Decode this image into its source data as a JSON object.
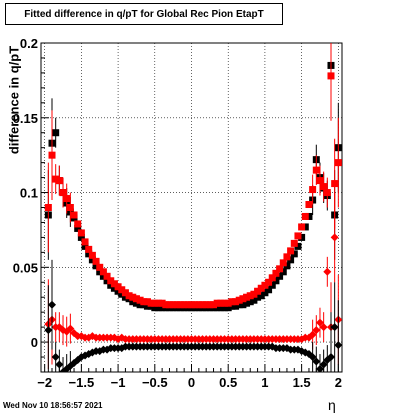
{
  "title": "Fitted difference in q/pT for Global Rec Pion EtapT",
  "timestamp": "Wed Nov 10 18:56:57 2021",
  "chart_data": {
    "type": "scatter",
    "title": "Fitted difference in q/pT for Global Rec Pion EtapT",
    "xlabel": "η",
    "ylabel": "difference in q/pT",
    "xlim": [
      -2.05,
      2.05
    ],
    "ylim": [
      -0.02,
      0.2
    ],
    "grid": true,
    "xticks": [
      -2,
      -1.5,
      -1,
      -0.5,
      0,
      0.5,
      1,
      1.5,
      2
    ],
    "xtick_labels": [
      "−2",
      "−1.5",
      "−1",
      "−0.5",
      "0",
      "0.5",
      "1",
      "1.5",
      "2"
    ],
    "yticks": [
      0,
      0.05,
      0.1,
      0.15,
      0.2
    ],
    "ytick_labels": [
      "0",
      "0.05",
      "0.1",
      "0.15",
      "0.2"
    ],
    "series": [
      {
        "color": "#000000",
        "marker": "square",
        "x": [
          -1.95,
          -1.9,
          -1.85,
          -1.8,
          -1.75,
          -1.7,
          -1.65,
          -1.6,
          -1.55,
          -1.5,
          -1.45,
          -1.4,
          -1.35,
          -1.3,
          -1.25,
          -1.2,
          -1.15,
          -1.1,
          -1.05,
          -1.0,
          -0.95,
          -0.9,
          -0.85,
          -0.8,
          -0.75,
          -0.7,
          -0.65,
          -0.6,
          -0.55,
          -0.5,
          -0.45,
          -0.4,
          -0.35,
          -0.3,
          -0.25,
          -0.2,
          -0.15,
          -0.1,
          -0.05,
          0.0,
          0.05,
          0.1,
          0.15,
          0.2,
          0.25,
          0.3,
          0.35,
          0.4,
          0.45,
          0.5,
          0.55,
          0.6,
          0.65,
          0.7,
          0.75,
          0.8,
          0.85,
          0.9,
          0.95,
          1.0,
          1.05,
          1.1,
          1.15,
          1.2,
          1.25,
          1.3,
          1.35,
          1.4,
          1.45,
          1.5,
          1.55,
          1.6,
          1.65,
          1.7,
          1.75,
          1.8,
          1.85,
          1.9,
          1.95,
          2.0
        ],
        "y": [
          0.085,
          0.133,
          0.14,
          0.108,
          0.1,
          0.093,
          0.087,
          0.083,
          0.076,
          0.07,
          0.064,
          0.059,
          0.055,
          0.051,
          0.047,
          0.044,
          0.041,
          0.038,
          0.036,
          0.034,
          0.032,
          0.03,
          0.029,
          0.027,
          0.026,
          0.025,
          0.025,
          0.024,
          0.024,
          0.023,
          0.023,
          0.023,
          0.023,
          0.023,
          0.023,
          0.023,
          0.023,
          0.023,
          0.023,
          0.023,
          0.023,
          0.023,
          0.023,
          0.023,
          0.023,
          0.023,
          0.023,
          0.023,
          0.023,
          0.023,
          0.024,
          0.024,
          0.025,
          0.025,
          0.026,
          0.027,
          0.028,
          0.03,
          0.031,
          0.033,
          0.035,
          0.038,
          0.041,
          0.044,
          0.047,
          0.051,
          0.055,
          0.059,
          0.064,
          0.07,
          0.077,
          0.084,
          0.095,
          0.122,
          0.11,
          0.103,
          0.098,
          0.185,
          0.085,
          0.13
        ]
      },
      {
        "color": "#ff0000",
        "marker": "square",
        "x": [
          -1.95,
          -1.9,
          -1.85,
          -1.8,
          -1.75,
          -1.7,
          -1.65,
          -1.6,
          -1.55,
          -1.5,
          -1.45,
          -1.4,
          -1.35,
          -1.3,
          -1.25,
          -1.2,
          -1.15,
          -1.1,
          -1.05,
          -1.0,
          -0.95,
          -0.9,
          -0.85,
          -0.8,
          -0.75,
          -0.7,
          -0.65,
          -0.6,
          -0.55,
          -0.5,
          -0.45,
          -0.4,
          -0.35,
          -0.3,
          -0.25,
          -0.2,
          -0.15,
          -0.1,
          -0.05,
          0.0,
          0.05,
          0.1,
          0.15,
          0.2,
          0.25,
          0.3,
          0.35,
          0.4,
          0.45,
          0.5,
          0.55,
          0.6,
          0.65,
          0.7,
          0.75,
          0.8,
          0.85,
          0.9,
          0.95,
          1.0,
          1.05,
          1.1,
          1.15,
          1.2,
          1.25,
          1.3,
          1.35,
          1.4,
          1.45,
          1.5,
          1.55,
          1.6,
          1.65,
          1.7,
          1.75,
          1.8,
          1.85,
          1.9,
          1.95,
          2.0
        ],
        "y": [
          0.09,
          0.125,
          0.109,
          0.108,
          0.1,
          0.096,
          0.09,
          0.085,
          0.079,
          0.073,
          0.067,
          0.062,
          0.058,
          0.054,
          0.05,
          0.047,
          0.044,
          0.041,
          0.039,
          0.037,
          0.035,
          0.033,
          0.031,
          0.03,
          0.029,
          0.028,
          0.027,
          0.027,
          0.026,
          0.026,
          0.026,
          0.026,
          0.025,
          0.025,
          0.025,
          0.025,
          0.025,
          0.025,
          0.025,
          0.025,
          0.025,
          0.025,
          0.025,
          0.025,
          0.025,
          0.025,
          0.026,
          0.026,
          0.026,
          0.026,
          0.027,
          0.027,
          0.028,
          0.029,
          0.03,
          0.031,
          0.032,
          0.034,
          0.036,
          0.038,
          0.04,
          0.043,
          0.046,
          0.049,
          0.053,
          0.057,
          0.061,
          0.066,
          0.071,
          0.077,
          0.084,
          0.092,
          0.102,
          0.115,
          0.108,
          0.104,
          0.1,
          0.178,
          0.106,
          0.12
        ]
      },
      {
        "color": "#ff0000",
        "marker": "diamond",
        "x": [
          -1.95,
          -1.9,
          -1.85,
          -1.8,
          -1.75,
          -1.7,
          -1.65,
          -1.6,
          -1.55,
          -1.5,
          -1.45,
          -1.4,
          -1.35,
          -1.3,
          -1.25,
          -1.2,
          -1.15,
          -1.1,
          -1.05,
          -1.0,
          -0.95,
          -0.9,
          -0.85,
          -0.8,
          -0.75,
          -0.7,
          -0.65,
          -0.6,
          -0.55,
          -0.5,
          -0.45,
          -0.4,
          -0.35,
          -0.3,
          -0.25,
          -0.2,
          -0.15,
          -0.1,
          -0.05,
          0.0,
          0.05,
          0.1,
          0.15,
          0.2,
          0.25,
          0.3,
          0.35,
          0.4,
          0.45,
          0.5,
          0.55,
          0.6,
          0.65,
          0.7,
          0.75,
          0.8,
          0.85,
          0.9,
          0.95,
          1.0,
          1.05,
          1.1,
          1.15,
          1.2,
          1.25,
          1.3,
          1.35,
          1.4,
          1.45,
          1.5,
          1.55,
          1.6,
          1.65,
          1.7,
          1.75,
          1.8,
          1.85,
          1.9,
          1.95,
          2.0
        ],
        "y": [
          0.012,
          0.015,
          0.01,
          0.01,
          0.008,
          0.007,
          0.009,
          0.006,
          0.004,
          0.004,
          0.003,
          0.003,
          0.004,
          0.003,
          0.003,
          0.003,
          0.003,
          0.003,
          0.003,
          0.002,
          0.003,
          0.002,
          0.002,
          0.002,
          0.002,
          0.002,
          0.002,
          0.002,
          0.002,
          0.002,
          0.002,
          0.002,
          0.002,
          0.002,
          0.002,
          0.002,
          0.002,
          0.002,
          0.002,
          0.002,
          0.002,
          0.002,
          0.002,
          0.002,
          0.002,
          0.002,
          0.002,
          0.002,
          0.002,
          0.002,
          0.002,
          0.002,
          0.002,
          0.002,
          0.002,
          0.002,
          0.002,
          0.002,
          0.002,
          0.002,
          0.002,
          0.002,
          0.002,
          0.002,
          0.002,
          0.002,
          0.002,
          0.002,
          0.002,
          0.002,
          0.003,
          0.003,
          0.005,
          0.008,
          0.013,
          0.01,
          0.047,
          0.01,
          0.07,
          0.015
        ]
      },
      {
        "color": "#000000",
        "marker": "diamond",
        "x": [
          -1.95,
          -1.9,
          -1.85,
          -1.8,
          -1.75,
          -1.7,
          -1.65,
          -1.6,
          -1.55,
          -1.5,
          -1.45,
          -1.4,
          -1.35,
          -1.3,
          -1.25,
          -1.2,
          -1.15,
          -1.1,
          -1.05,
          -1.0,
          -0.95,
          -0.9,
          -0.85,
          -0.8,
          -0.75,
          -0.7,
          -0.65,
          -0.6,
          -0.55,
          -0.5,
          -0.45,
          -0.4,
          -0.35,
          -0.3,
          -0.25,
          -0.2,
          -0.15,
          -0.1,
          -0.05,
          0.0,
          0.05,
          0.1,
          0.15,
          0.2,
          0.25,
          0.3,
          0.35,
          0.4,
          0.45,
          0.5,
          0.55,
          0.6,
          0.65,
          0.7,
          0.75,
          0.8,
          0.85,
          0.9,
          0.95,
          1.0,
          1.05,
          1.1,
          1.15,
          1.2,
          1.25,
          1.3,
          1.35,
          1.4,
          1.45,
          1.5,
          1.55,
          1.6,
          1.65,
          1.7,
          1.75,
          1.8,
          1.85,
          1.9,
          1.95,
          2.0
        ],
        "y": [
          0.008,
          0.025,
          -0.01,
          -0.015,
          -0.02,
          -0.018,
          -0.016,
          -0.014,
          -0.012,
          -0.01,
          -0.009,
          -0.008,
          -0.007,
          -0.006,
          -0.006,
          -0.005,
          -0.005,
          -0.004,
          -0.004,
          -0.004,
          -0.004,
          -0.003,
          -0.003,
          -0.003,
          -0.003,
          -0.003,
          -0.003,
          -0.003,
          -0.003,
          -0.003,
          -0.003,
          -0.003,
          -0.003,
          -0.003,
          -0.003,
          -0.003,
          -0.003,
          -0.003,
          -0.003,
          -0.003,
          -0.003,
          -0.003,
          -0.003,
          -0.003,
          -0.003,
          -0.003,
          -0.003,
          -0.003,
          -0.003,
          -0.003,
          -0.003,
          -0.003,
          -0.003,
          -0.003,
          -0.003,
          -0.003,
          -0.003,
          -0.003,
          -0.003,
          -0.003,
          -0.003,
          -0.003,
          -0.004,
          -0.004,
          -0.004,
          -0.004,
          -0.005,
          -0.005,
          -0.005,
          -0.006,
          -0.007,
          -0.008,
          -0.01,
          -0.013,
          -0.018,
          -0.015,
          -0.012,
          -0.01,
          0.01,
          -0.002
        ]
      }
    ]
  }
}
